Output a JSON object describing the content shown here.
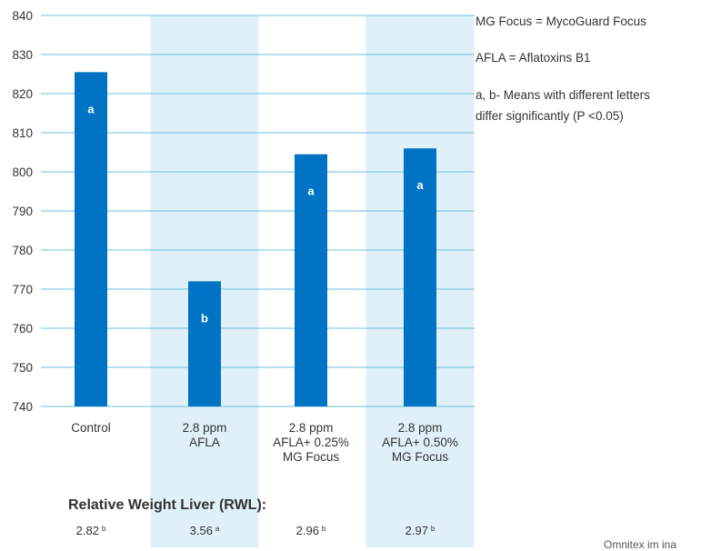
{
  "chart_data": {
    "type": "bar",
    "title": "",
    "xlabel": "",
    "ylabel": "",
    "ylim": [
      740,
      840
    ],
    "yticks": [
      740,
      750,
      760,
      770,
      780,
      790,
      800,
      810,
      820,
      830,
      840
    ],
    "grid": true,
    "categories": [
      [
        "Control"
      ],
      [
        "2.8 ppm",
        "AFLA"
      ],
      [
        "2.8 ppm",
        "AFLA+ 0.25%",
        "MG Focus"
      ],
      [
        "2.8 ppm",
        "AFLA+ 0.50%",
        "MG Focus"
      ]
    ],
    "values": [
      825.5,
      772,
      804.5,
      806
    ],
    "letters": [
      "a",
      "b",
      "a",
      "a"
    ],
    "bar_color": "#0073c4",
    "shade_color": "#dff0f8",
    "grid_color": "#6cc0e0",
    "shaded_categories": [
      1,
      3
    ]
  },
  "notes": [
    "MG Focus = MycoGuard Focus",
    "AFLA = Aflatoxins B1",
    "a, b- Means with different letters",
    "differ significantly (P <0.05)"
  ],
  "rwl": {
    "title": "Relative Weight Liver (RWL):",
    "values": [
      "2.82",
      "3.56",
      "2.96",
      "2.97"
    ],
    "letters": [
      "b",
      "a",
      "b",
      "b"
    ]
  },
  "credit": "Omnitex im ina"
}
